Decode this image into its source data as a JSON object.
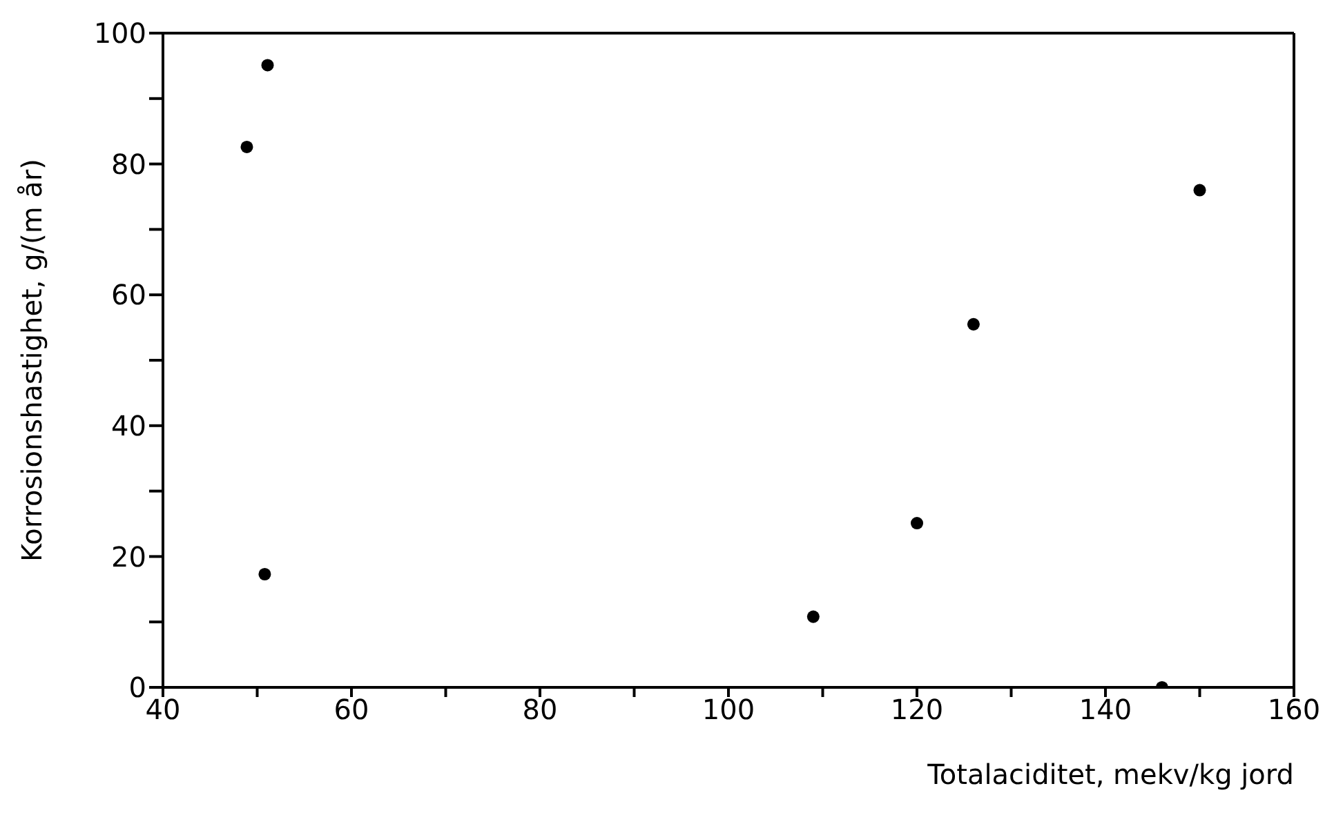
{
  "chart_data": {
    "type": "scatter",
    "xlabel": "Totalaciditet, mekv/kg jord",
    "ylabel": "Korrosionshastighet, g/(m år)",
    "x": [
      48.9,
      51.1,
      50.8,
      109,
      120,
      126,
      146,
      150
    ],
    "series": [
      {
        "color": "#000000",
        "values": [
          82.6,
          95.1,
          17.3,
          10.8,
          25.1,
          55.5,
          0,
          76
        ]
      }
    ],
    "xlim": [
      40,
      160
    ],
    "xticks": [
      40,
      {
        "value": 50,
        "label": null
      },
      60,
      {
        "value": 70,
        "label": null
      },
      80,
      {
        "value": 90,
        "label": null
      },
      100,
      {
        "value": 110,
        "label": null
      },
      120,
      {
        "value": 130,
        "label": null
      },
      140,
      {
        "value": 150,
        "label": null
      },
      160
    ],
    "ylim": [
      0,
      100
    ],
    "yticks": [
      0,
      {
        "value": 10,
        "label": null
      },
      20,
      {
        "value": 30,
        "label": null
      },
      40,
      {
        "value": 50,
        "label": null
      },
      60,
      {
        "value": 70,
        "label": null
      },
      80,
      {
        "value": 90,
        "label": null
      },
      100
    ],
    "legend": false,
    "marker": "circle"
  }
}
